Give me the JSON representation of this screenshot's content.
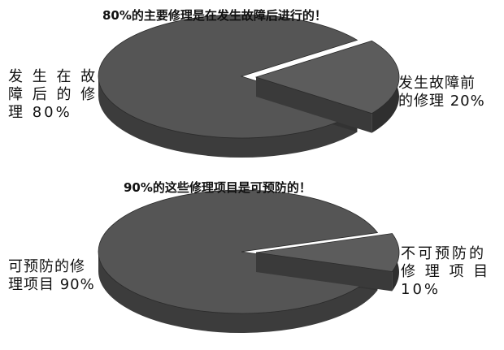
{
  "chart_data": [
    {
      "type": "pie",
      "title": "80%的主要修理是在发生故障后进行的！",
      "slices": [
        {
          "label": "发生在故障后的修理80%",
          "value": 80,
          "display": "发 生 在 故\n障 后 的 修\n理 80%"
        },
        {
          "label": "发生故障前的修理20%",
          "value": 20,
          "display": "发生故障前\n的修理 20%"
        }
      ],
      "style": "3d-exploded",
      "colors": {
        "top": "#555555",
        "side": "#3c3c3c",
        "wedge_top": "#5c5c5c"
      }
    },
    {
      "type": "pie",
      "title": "90%的这些修理项目是可预防的！",
      "slices": [
        {
          "label": "可预防的修理项目90%",
          "value": 90,
          "display": "可预防的修\n理项目 90%"
        },
        {
          "label": "不可预防的修理项目10%",
          "value": 10,
          "display": "不可预防的\n修 理 项 目\n10%"
        }
      ],
      "style": "3d-exploded",
      "colors": {
        "top": "#555555",
        "side": "#3c3c3c",
        "wedge_top": "#5c5c5c"
      }
    }
  ]
}
